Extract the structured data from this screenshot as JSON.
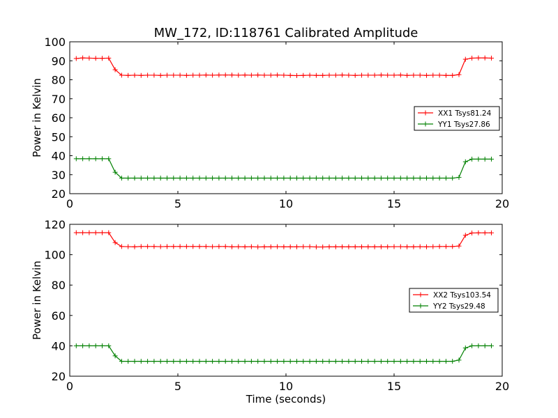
{
  "title": "MW_172, ID:118761 Calibrated Amplitude",
  "chart_data": [
    {
      "type": "line",
      "ylabel": "Power in Kelvin",
      "xlabel": "",
      "xlim": [
        0,
        20
      ],
      "ylim": [
        20,
        100
      ],
      "xticks": [
        0,
        5,
        10,
        15,
        20
      ],
      "yticks": [
        20,
        30,
        40,
        50,
        60,
        70,
        80,
        90,
        100
      ],
      "grid": false,
      "legend_position": "right",
      "x": [
        0.3,
        0.6,
        0.9,
        1.2,
        1.5,
        1.8,
        2.1,
        2.4,
        2.7,
        3.0,
        3.3,
        3.6,
        3.9,
        4.2,
        4.5,
        4.8,
        5.1,
        5.4,
        5.7,
        6.0,
        6.3,
        6.6,
        6.9,
        7.2,
        7.5,
        7.8,
        8.1,
        8.4,
        8.7,
        9.0,
        9.3,
        9.6,
        9.9,
        10.2,
        10.5,
        10.8,
        11.1,
        11.4,
        11.7,
        12.0,
        12.3,
        12.6,
        12.9,
        13.2,
        13.5,
        13.8,
        14.1,
        14.4,
        14.7,
        15.0,
        15.3,
        15.6,
        15.9,
        16.2,
        16.5,
        16.8,
        17.1,
        17.4,
        17.7,
        18.0,
        18.3,
        18.6,
        18.9,
        19.2,
        19.5
      ],
      "series": [
        {
          "name": "XX1 Tsys81.24",
          "color": "#ff0000",
          "values": [
            91.2,
            91.5,
            91.4,
            91.3,
            91.3,
            91.4,
            85.3,
            82.4,
            82.3,
            82.4,
            82.3,
            82.4,
            82.4,
            82.3,
            82.4,
            82.4,
            82.4,
            82.3,
            82.4,
            82.4,
            82.5,
            82.4,
            82.5,
            82.5,
            82.5,
            82.4,
            82.5,
            82.4,
            82.5,
            82.4,
            82.4,
            82.5,
            82.4,
            82.3,
            82.2,
            82.3,
            82.4,
            82.3,
            82.3,
            82.4,
            82.4,
            82.5,
            82.4,
            82.3,
            82.4,
            82.4,
            82.4,
            82.5,
            82.4,
            82.4,
            82.5,
            82.3,
            82.4,
            82.4,
            82.3,
            82.4,
            82.4,
            82.3,
            82.3,
            82.7,
            90.8,
            91.4,
            91.5,
            91.5,
            91.4
          ]
        },
        {
          "name": "YY1 Tsys27.86",
          "color": "#008000",
          "values": [
            38.4,
            38.4,
            38.4,
            38.4,
            38.4,
            38.4,
            31.3,
            28.2,
            28.2,
            28.2,
            28.2,
            28.2,
            28.2,
            28.2,
            28.2,
            28.2,
            28.2,
            28.2,
            28.2,
            28.2,
            28.2,
            28.2,
            28.2,
            28.2,
            28.2,
            28.2,
            28.2,
            28.2,
            28.2,
            28.2,
            28.2,
            28.2,
            28.2,
            28.2,
            28.2,
            28.2,
            28.2,
            28.2,
            28.2,
            28.2,
            28.2,
            28.2,
            28.2,
            28.2,
            28.2,
            28.2,
            28.2,
            28.2,
            28.2,
            28.2,
            28.2,
            28.2,
            28.2,
            28.2,
            28.2,
            28.2,
            28.2,
            28.2,
            28.2,
            28.6,
            36.8,
            38.2,
            38.2,
            38.2,
            38.2
          ]
        }
      ]
    },
    {
      "type": "line",
      "ylabel": "Power in Kelvin",
      "xlabel": "Time (seconds)",
      "xlim": [
        0,
        20
      ],
      "ylim": [
        20,
        120
      ],
      "xticks": [
        0,
        5,
        10,
        15,
        20
      ],
      "yticks": [
        20,
        40,
        60,
        80,
        100,
        120
      ],
      "grid": false,
      "legend_position": "right",
      "x": [
        0.3,
        0.6,
        0.9,
        1.2,
        1.5,
        1.8,
        2.1,
        2.4,
        2.7,
        3.0,
        3.3,
        3.6,
        3.9,
        4.2,
        4.5,
        4.8,
        5.1,
        5.4,
        5.7,
        6.0,
        6.3,
        6.6,
        6.9,
        7.2,
        7.5,
        7.8,
        8.1,
        8.4,
        8.7,
        9.0,
        9.3,
        9.6,
        9.9,
        10.2,
        10.5,
        10.8,
        11.1,
        11.4,
        11.7,
        12.0,
        12.3,
        12.6,
        12.9,
        13.2,
        13.5,
        13.8,
        14.1,
        14.4,
        14.7,
        15.0,
        15.3,
        15.6,
        15.9,
        16.2,
        16.5,
        16.8,
        17.1,
        17.4,
        17.7,
        18.0,
        18.3,
        18.6,
        18.9,
        19.2,
        19.5
      ],
      "series": [
        {
          "name": "XX2 Tsys103.54",
          "color": "#ff0000",
          "values": [
            114.5,
            114.5,
            114.5,
            114.5,
            114.5,
            114.5,
            108.0,
            105.4,
            105.3,
            105.2,
            105.4,
            105.4,
            105.4,
            105.3,
            105.4,
            105.4,
            105.4,
            105.4,
            105.4,
            105.4,
            105.4,
            105.3,
            105.4,
            105.4,
            105.2,
            105.3,
            105.2,
            105.3,
            105.1,
            105.2,
            105.2,
            105.3,
            105.2,
            105.2,
            105.2,
            105.3,
            105.3,
            105.1,
            105.1,
            105.2,
            105.2,
            105.2,
            105.2,
            105.2,
            105.2,
            105.2,
            105.2,
            105.2,
            105.2,
            105.3,
            105.3,
            105.2,
            105.2,
            105.3,
            105.2,
            105.3,
            105.4,
            105.4,
            105.4,
            105.7,
            112.8,
            114.3,
            114.4,
            114.4,
            114.4
          ]
        },
        {
          "name": "YY2 Tsys29.48",
          "color": "#008000",
          "values": [
            40.0,
            40.0,
            40.0,
            40.0,
            40.0,
            40.0,
            33.4,
            29.8,
            29.8,
            29.8,
            29.8,
            29.8,
            29.8,
            29.8,
            29.8,
            29.8,
            29.8,
            29.8,
            29.8,
            29.8,
            29.8,
            29.8,
            29.8,
            29.8,
            29.8,
            29.8,
            29.8,
            29.8,
            29.8,
            29.8,
            29.8,
            29.8,
            29.8,
            29.8,
            29.8,
            29.8,
            29.8,
            29.8,
            29.8,
            29.8,
            29.8,
            29.8,
            29.8,
            29.8,
            29.8,
            29.8,
            29.8,
            29.8,
            29.8,
            29.8,
            29.8,
            29.8,
            29.8,
            29.8,
            29.8,
            29.8,
            29.8,
            29.8,
            29.8,
            30.6,
            38.6,
            40.0,
            40.0,
            40.0,
            40.0
          ]
        }
      ]
    }
  ]
}
